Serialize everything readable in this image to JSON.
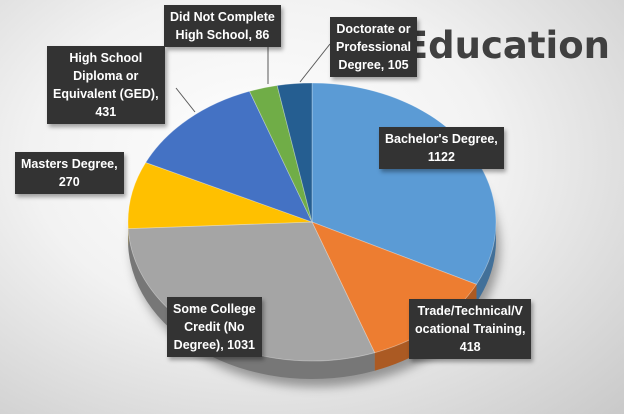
{
  "chart_data": {
    "type": "pie",
    "title": "Education",
    "colors": {
      "slice_blue": "#5b9bd5",
      "slice_orange": "#ed7d31",
      "slice_gray": "#a5a5a5",
      "slice_gold": "#ffc000",
      "slice_royal": "#4472c4",
      "slice_green": "#70ad47",
      "slice_navy": "#255e91",
      "label_bg": "#333333"
    },
    "slices": [
      {
        "category": "Bachelor's Degree",
        "value": 1122,
        "color": "#5b9bd5",
        "label_lines": [
          "Bachelor's Degree,",
          "1122"
        ]
      },
      {
        "category": "Trade/Technical/Vocational Training",
        "value": 418,
        "color": "#ed7d31",
        "label_lines": [
          "Trade/Technical/V",
          "ocational Training,",
          "418"
        ]
      },
      {
        "category": "Some College Credit (No Degree)",
        "value": 1031,
        "color": "#a5a5a5",
        "label_lines": [
          "Some College",
          "Credit (No",
          "Degree), 1031"
        ]
      },
      {
        "category": "Masters Degree",
        "value": 270,
        "color": "#ffc000",
        "label_lines": [
          "Masters Degree,",
          "270"
        ]
      },
      {
        "category": "High School Diploma or Equivalent (GED)",
        "value": 431,
        "color": "#4472c4",
        "label_lines": [
          "High School",
          "Diploma or",
          "Equivalent (GED),",
          "431"
        ]
      },
      {
        "category": "Did Not Complete High School",
        "value": 86,
        "color": "#70ad47",
        "label_lines": [
          "Did Not Complete",
          "High School, 86"
        ]
      },
      {
        "category": "Doctorate or Professional Degree",
        "value": 105,
        "color": "#255e91",
        "label_lines": [
          "Doctorate or",
          "Professional",
          "Degree, 105"
        ]
      }
    ],
    "legend": "none",
    "three_d": true
  }
}
